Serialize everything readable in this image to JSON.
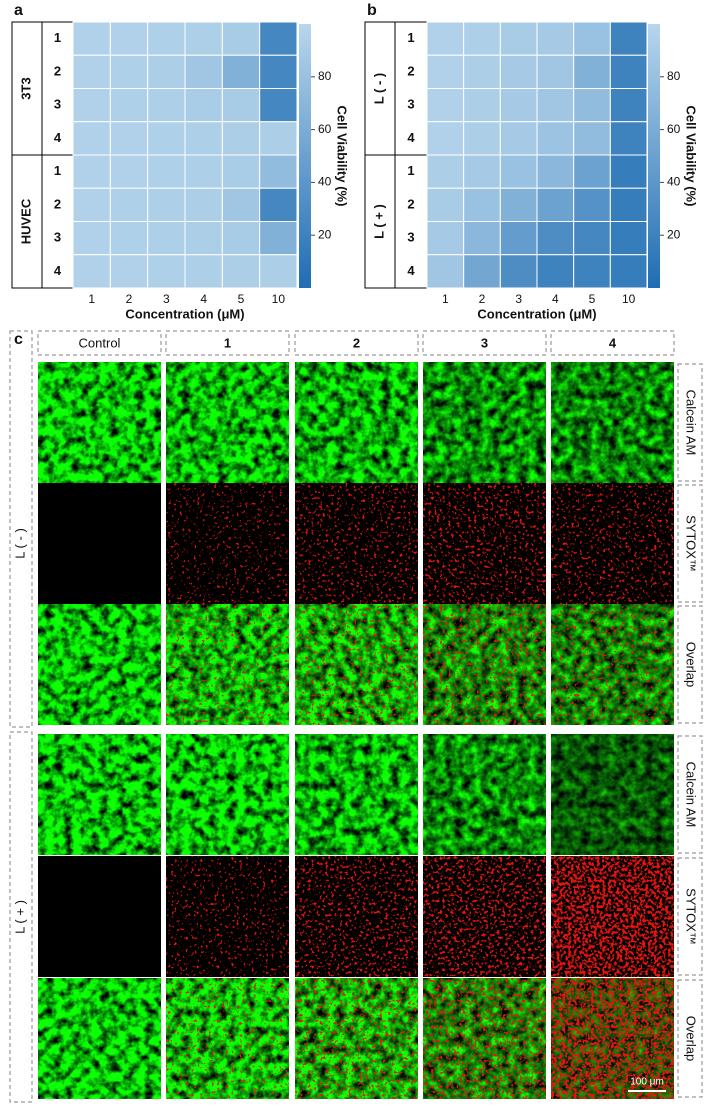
{
  "chart_data": [
    {
      "type": "heatmap",
      "panel_label": "a",
      "row_groups": [
        {
          "name": "3T3",
          "rows": [
            "1",
            "2",
            "3",
            "4"
          ]
        },
        {
          "name": "HUVEC",
          "rows": [
            "1",
            "2",
            "3",
            "4"
          ]
        }
      ],
      "categories": [
        "1",
        "2",
        "3",
        "4",
        "5",
        "10"
      ],
      "x_label": "Concentration (μM)",
      "values": [
        [
          95,
          95,
          94,
          93,
          90,
          25
        ],
        [
          95,
          94,
          92,
          85,
          65,
          25
        ],
        [
          95,
          94,
          93,
          91,
          90,
          25
        ],
        [
          95,
          95,
          94,
          93,
          92,
          92
        ],
        [
          95,
          95,
          94,
          93,
          91,
          75
        ],
        [
          95,
          94,
          93,
          92,
          85,
          25
        ],
        [
          95,
          94,
          93,
          92,
          90,
          65
        ],
        [
          95,
          95,
          94,
          93,
          92,
          92
        ]
      ],
      "zlim": [
        0,
        100
      ],
      "zticks": [
        20,
        40,
        60,
        80
      ],
      "zlabel": "Cell Viability (%)",
      "colormap": [
        "#1f6db3",
        "#b8d6ec"
      ]
    },
    {
      "type": "heatmap",
      "panel_label": "b",
      "row_groups": [
        {
          "name": "L ( - )",
          "rows": [
            "1",
            "2",
            "3",
            "4"
          ]
        },
        {
          "name": "L ( + )",
          "rows": [
            "1",
            "2",
            "3",
            "4"
          ]
        }
      ],
      "categories": [
        "1",
        "2",
        "3",
        "4",
        "5",
        "10"
      ],
      "x_label": "Concentration (μM)",
      "values": [
        [
          95,
          93,
          90,
          88,
          80,
          20
        ],
        [
          95,
          92,
          88,
          85,
          65,
          20
        ],
        [
          95,
          92,
          88,
          85,
          75,
          20
        ],
        [
          95,
          92,
          88,
          82,
          75,
          20
        ],
        [
          92,
          88,
          80,
          70,
          50,
          15
        ],
        [
          90,
          80,
          65,
          50,
          35,
          15
        ],
        [
          88,
          70,
          45,
          30,
          25,
          15
        ],
        [
          85,
          55,
          30,
          20,
          20,
          15
        ]
      ],
      "zlim": [
        0,
        100
      ],
      "zticks": [
        20,
        40,
        60,
        80
      ],
      "zlabel": "Cell Viability (%)",
      "colormap": [
        "#1f6db3",
        "#b8d6ec"
      ]
    }
  ],
  "panel_c": {
    "panel_label": "c",
    "columns": [
      "Control",
      "1",
      "2",
      "3",
      "4"
    ],
    "groups": [
      {
        "name": "L ( - )",
        "rows": [
          "Calcein AM",
          "SYTOX™",
          "Overlap"
        ]
      },
      {
        "name": "L ( + )",
        "rows": [
          "Calcein AM",
          "SYTOX™",
          "Overlap"
        ]
      }
    ],
    "scale_bar": "100 μm"
  }
}
